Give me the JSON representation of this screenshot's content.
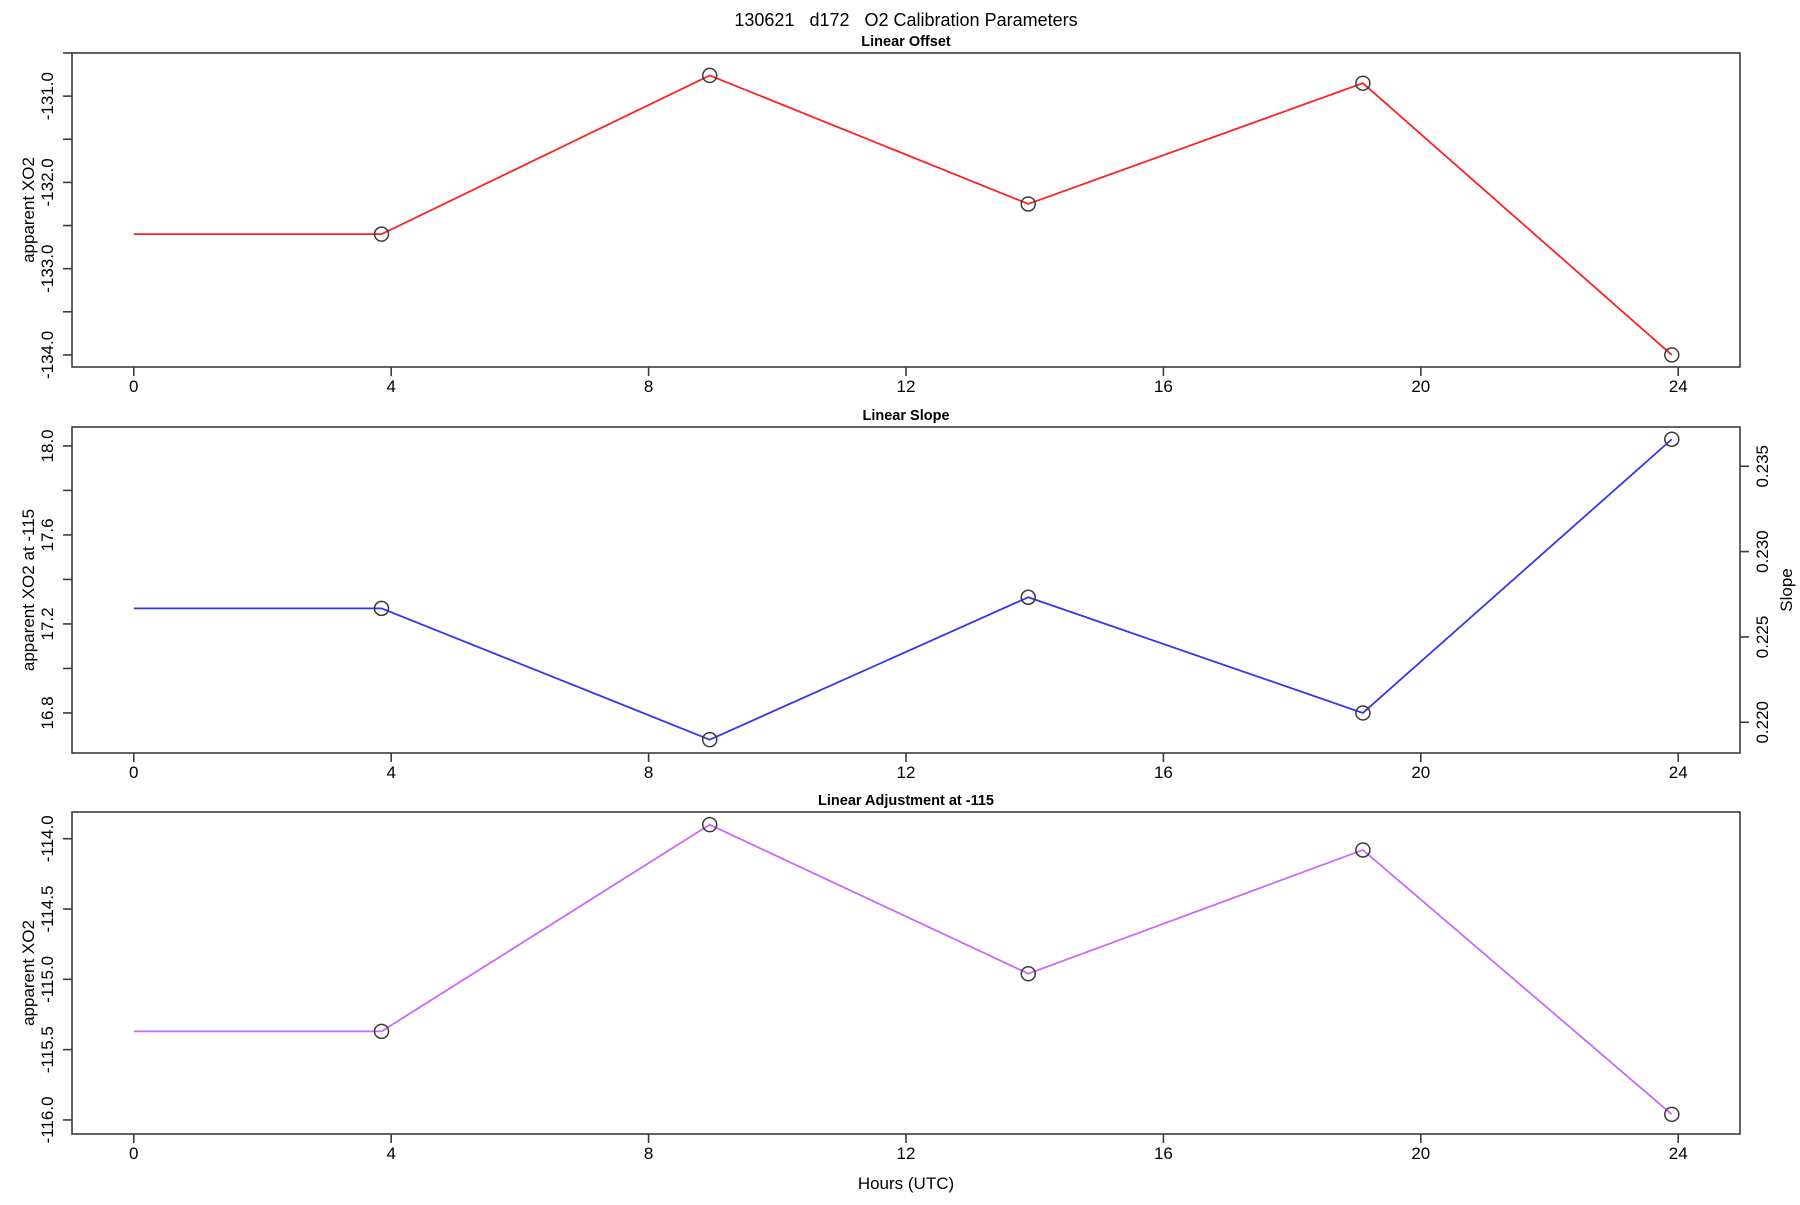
{
  "figure": {
    "title": "130621   d172   O2 Calibration Parameters",
    "background": "#ffffff",
    "axis_color": "#3c3c3c",
    "marker_color": "#3a3a3a",
    "text_color": "#000000"
  },
  "x_axis": {
    "label": "Hours (UTC)",
    "ticks": [
      0,
      4,
      8,
      12,
      16,
      20,
      24
    ],
    "xlim": [
      -0.96,
      24.96
    ]
  },
  "chart_data": [
    {
      "type": "line",
      "title": "Linear Offset",
      "ylabel": "apparent XO2",
      "line_color": "#ff2020",
      "marker": "open-circle",
      "x": [
        0,
        3.85,
        8.95,
        13.9,
        19.1,
        23.9
      ],
      "y": [
        -132.6,
        -132.6,
        -130.76,
        -132.25,
        -130.85,
        -134.0
      ],
      "marker_start_index": 1,
      "ylim": [
        -134.14,
        -130.5
      ],
      "yticks": [
        {
          "value": -131,
          "label": "-131.0"
        },
        {
          "value": -132,
          "label": "-132.0"
        },
        {
          "value": -133,
          "label": "-133.0"
        },
        {
          "value": -134,
          "label": "-134.0"
        }
      ],
      "yticks_minor": [
        -130.5,
        -131.5,
        -132.5,
        -133.5
      ]
    },
    {
      "type": "line",
      "title": "Linear Slope",
      "ylabel": "apparent XO2 at -115",
      "line_color": "#3535f0",
      "marker": "open-circle",
      "x": [
        0,
        3.85,
        8.95,
        13.9,
        19.1,
        23.9
      ],
      "y": [
        17.27,
        17.27,
        16.68,
        17.32,
        16.8,
        18.03
      ],
      "marker_start_index": 1,
      "ylim": [
        16.62,
        18.085
      ],
      "yticks": [
        {
          "value": 16.8,
          "label": "16.8"
        },
        {
          "value": 17.2,
          "label": "17.2"
        },
        {
          "value": 17.6,
          "label": "17.6"
        },
        {
          "value": 18.0,
          "label": "18.0"
        }
      ],
      "yticks_minor": [
        17.0,
        17.4,
        17.8
      ],
      "right_axis": {
        "label": "Slope",
        "ylim": [
          0.2182,
          0.2373
        ],
        "ticks": [
          {
            "value": 0.22,
            "label": "0.220"
          },
          {
            "value": 0.225,
            "label": "0.225"
          },
          {
            "value": 0.23,
            "label": "0.230"
          },
          {
            "value": 0.235,
            "label": "0.235"
          }
        ]
      }
    },
    {
      "type": "line",
      "title": "Linear Adjustment at -115",
      "ylabel": "apparent XO2",
      "line_color": "#cc66ff",
      "marker": "open-circle",
      "x": [
        0,
        3.85,
        8.95,
        13.9,
        19.1,
        23.9
      ],
      "y": [
        -115.37,
        -115.37,
        -113.9,
        -114.96,
        -114.08,
        -115.96
      ],
      "marker_start_index": 1,
      "ylim": [
        -116.1,
        -113.81
      ],
      "yticks": [
        {
          "value": -114.0,
          "label": "-114.0"
        },
        {
          "value": -114.5,
          "label": "-114.5"
        },
        {
          "value": -115.0,
          "label": "-115.0"
        },
        {
          "value": -115.5,
          "label": "-115.5"
        },
        {
          "value": -116.0,
          "label": "-116.0"
        }
      ],
      "yticks_minor": []
    }
  ]
}
